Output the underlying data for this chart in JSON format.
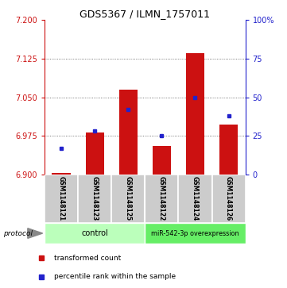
{
  "title": "GDS5367 / ILMN_1757011",
  "samples": [
    "GSM1148121",
    "GSM1148123",
    "GSM1148125",
    "GSM1148122",
    "GSM1148124",
    "GSM1148126"
  ],
  "red_values": [
    6.902,
    6.982,
    7.065,
    6.955,
    7.135,
    6.997
  ],
  "blue_percentiles": [
    17,
    28,
    42,
    25,
    50,
    38
  ],
  "bar_base": 6.9,
  "ylim_left": [
    6.9,
    7.2
  ],
  "ylim_right": [
    0,
    100
  ],
  "left_ticks": [
    6.9,
    6.975,
    7.05,
    7.125,
    7.2
  ],
  "right_ticks": [
    0,
    25,
    50,
    75,
    100
  ],
  "right_tick_labels": [
    "0",
    "25",
    "50",
    "75",
    "100%"
  ],
  "dotted_levels": [
    6.975,
    7.05,
    7.125
  ],
  "group_labels": [
    "control",
    "miR-542-3p overexpression"
  ],
  "bar_color": "#cc1111",
  "dot_color": "#2222cc",
  "control_color": "#bbffbb",
  "overexp_color": "#66ee66",
  "background_color": "#ffffff",
  "bar_width": 0.55,
  "legend_red": "transformed count",
  "legend_blue": "percentile rank within the sample",
  "title_fontsize": 9,
  "tick_fontsize": 7,
  "label_fontsize": 5.5,
  "group_fontsize": 7,
  "legend_fontsize": 6.5
}
